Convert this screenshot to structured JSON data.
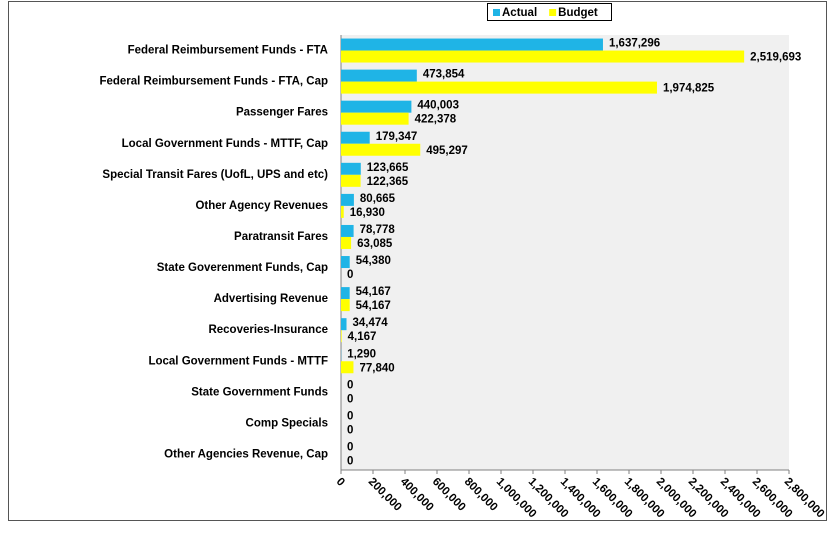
{
  "chart_data": {
    "type": "bar",
    "orientation": "horizontal",
    "categories": [
      "Federal Reimbursement Funds - FTA",
      "Federal Reimbursement Funds - FTA, Cap",
      "Passenger Fares",
      "Local Government Funds - MTTF, Cap",
      "Special Transit Fares (UofL, UPS and etc)",
      "Other Agency Revenues",
      "Paratransit Fares",
      "State Goverenment Funds, Cap",
      "Advertising Revenue",
      "Recoveries-Insurance",
      "Local Government Funds - MTTF",
      "State Government Funds",
      "Comp Specials",
      "Other Agencies Revenue, Cap"
    ],
    "series": [
      {
        "name": "Actual",
        "color": "#1fb4e6",
        "values": [
          1637296,
          473854,
          440003,
          179347,
          123665,
          80665,
          78778,
          54380,
          54167,
          34474,
          1290,
          0,
          0,
          0
        ],
        "value_labels": [
          "1,637,296",
          "473,854",
          "440,003",
          "179,347",
          "123,665",
          "80,665",
          "78,778",
          "54,380",
          "54,167",
          "34,474",
          "1,290",
          "0",
          "0",
          "0"
        ]
      },
      {
        "name": "Budget",
        "color": "#ffff00",
        "values": [
          2519693,
          1974825,
          422378,
          495297,
          122365,
          16930,
          63085,
          0,
          54167,
          4167,
          77840,
          0,
          0,
          0
        ],
        "value_labels": [
          "2,519,693",
          "1,974,825",
          "422,378",
          "495,297",
          "122,365",
          "16,930",
          "63,085",
          "0",
          "54,167",
          "4,167",
          "77,840",
          "0",
          "0",
          "0"
        ]
      }
    ],
    "xlim": [
      0,
      2800000
    ],
    "xticks": [
      0,
      {
        "value": 200000,
        "label": "200,000"
      },
      {
        "value": 400000,
        "label": "400,000"
      },
      {
        "value": 600000,
        "label": "600,000"
      },
      {
        "value": 800000,
        "label": "800,000"
      },
      {
        "value": 1000000,
        "label": "1,000,000"
      },
      {
        "value": 1200000,
        "label": "1,200,000"
      },
      {
        "value": 1400000,
        "label": "1,400,000"
      },
      {
        "value": 1600000,
        "label": "1,600,000"
      },
      {
        "value": 1800000,
        "label": "1,800,000"
      },
      {
        "value": 2000000,
        "label": "2,000,000"
      },
      {
        "value": 2200000,
        "label": "2,200,000"
      },
      {
        "value": 2400000,
        "label": "2,400,000"
      },
      {
        "value": 2600000,
        "label": "2,600,000"
      },
      {
        "value": 2800000,
        "label": "2,800,000"
      }
    ],
    "grid": false,
    "legend": "top"
  }
}
